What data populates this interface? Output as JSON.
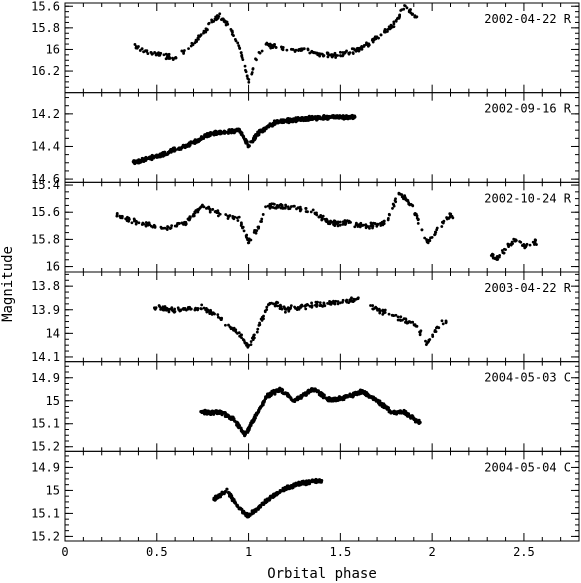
{
  "figure": {
    "xlabel": "Orbital phase",
    "ylabel": "Magnitude",
    "colors": {
      "points": "#000000",
      "frame": "#000000",
      "background": "#ffffff"
    }
  },
  "chart_data": [
    {
      "type": "scatter",
      "label": "2002-04-22 R",
      "xlim": [
        0,
        2.8
      ],
      "ylim": [
        16.4,
        15.57
      ],
      "y_inverted": true,
      "yticks": [
        "15.6",
        "15.8",
        "16",
        "16.2"
      ],
      "xticks": [
        "0",
        "0.5",
        "1",
        "1.5",
        "2",
        "2.5"
      ],
      "phase_range": [
        0.38,
        1.92
      ],
      "key_points": [
        [
          0.38,
          15.98
        ],
        [
          0.5,
          16.05
        ],
        [
          0.6,
          16.08
        ],
        [
          0.7,
          15.95
        ],
        [
          0.8,
          15.75
        ],
        [
          0.84,
          15.68
        ],
        [
          0.9,
          15.8
        ],
        [
          0.95,
          15.98
        ],
        [
          1.0,
          16.3
        ],
        [
          1.05,
          16.05
        ],
        [
          1.1,
          15.95
        ],
        [
          1.2,
          16.0
        ],
        [
          1.3,
          16.0
        ],
        [
          1.4,
          16.05
        ],
        [
          1.5,
          16.05
        ],
        [
          1.6,
          16.0
        ],
        [
          1.7,
          15.9
        ],
        [
          1.8,
          15.75
        ],
        [
          1.85,
          15.6
        ],
        [
          1.92,
          15.7
        ]
      ]
    },
    {
      "type": "scatter",
      "label": "2002-09-16 R",
      "xlim": [
        0,
        2.8
      ],
      "ylim": [
        14.62,
        14.07
      ],
      "y_inverted": true,
      "yticks": [
        "14.2",
        "14.4",
        "14.6"
      ],
      "xticks": [
        "0",
        "0.5",
        "1",
        "1.5",
        "2",
        "2.5"
      ],
      "phase_range": [
        0.37,
        1.58
      ],
      "key_points": [
        [
          0.37,
          14.5
        ],
        [
          0.5,
          14.46
        ],
        [
          0.65,
          14.4
        ],
        [
          0.8,
          14.32
        ],
        [
          0.95,
          14.3
        ],
        [
          1.0,
          14.4
        ],
        [
          1.05,
          14.32
        ],
        [
          1.15,
          14.25
        ],
        [
          1.3,
          14.23
        ],
        [
          1.45,
          14.22
        ],
        [
          1.58,
          14.22
        ]
      ]
    },
    {
      "type": "scatter",
      "label": "2002-10-24 R",
      "xlim": [
        0,
        2.8
      ],
      "ylim": [
        16.04,
        15.38
      ],
      "y_inverted": true,
      "yticks": [
        "15.4",
        "15.6",
        "15.8",
        "16"
      ],
      "xticks": [
        "0",
        "0.5",
        "1",
        "1.5",
        "2",
        "2.5"
      ],
      "phase_range": [
        0.28,
        2.57
      ],
      "key_points": [
        [
          0.28,
          15.62
        ],
        [
          0.4,
          15.68
        ],
        [
          0.55,
          15.72
        ],
        [
          0.65,
          15.68
        ],
        [
          0.75,
          15.55
        ],
        [
          0.85,
          15.62
        ],
        [
          0.95,
          15.65
        ],
        [
          1.0,
          15.82
        ],
        [
          1.05,
          15.72
        ],
        [
          1.1,
          15.55
        ],
        [
          1.25,
          15.57
        ],
        [
          1.35,
          15.6
        ],
        [
          1.45,
          15.68
        ],
        [
          1.55,
          15.68
        ],
        [
          1.65,
          15.7
        ],
        [
          1.75,
          15.68
        ],
        [
          1.82,
          15.45
        ],
        [
          1.9,
          15.58
        ],
        [
          1.97,
          15.82
        ],
        [
          2.05,
          15.7
        ],
        [
          2.1,
          15.62
        ],
        [
          2.35,
          15.95
        ],
        [
          2.45,
          15.8
        ],
        [
          2.5,
          15.85
        ],
        [
          2.57,
          15.82
        ]
      ]
    },
    {
      "type": "scatter",
      "label": "2003-04-22 R",
      "xlim": [
        0,
        2.8
      ],
      "ylim": [
        14.12,
        13.74
      ],
      "y_inverted": true,
      "yticks": [
        "13.8",
        "13.9",
        "14",
        "14.1"
      ],
      "xticks": [
        "0",
        "0.5",
        "1",
        "1.5",
        "2",
        "2.5"
      ],
      "phase_range": [
        0.48,
        2.08
      ],
      "key_points": [
        [
          0.48,
          13.89
        ],
        [
          0.6,
          13.9
        ],
        [
          0.75,
          13.89
        ],
        [
          0.85,
          13.94
        ],
        [
          0.95,
          14.0
        ],
        [
          1.0,
          14.06
        ],
        [
          1.05,
          13.98
        ],
        [
          1.12,
          13.86
        ],
        [
          1.2,
          13.9
        ],
        [
          1.35,
          13.88
        ],
        [
          1.5,
          13.87
        ],
        [
          1.6,
          13.85
        ],
        [
          1.7,
          13.9
        ],
        [
          1.8,
          13.93
        ],
        [
          1.92,
          13.97
        ],
        [
          1.97,
          14.05
        ],
        [
          2.05,
          13.95
        ]
      ]
    },
    {
      "type": "scatter",
      "label": "2004-05-03 C",
      "xlim": [
        0,
        2.8
      ],
      "ylim": [
        15.22,
        14.83
      ],
      "y_inverted": true,
      "yticks": [
        "14.9",
        "15",
        "15.1",
        "15.2"
      ],
      "xticks": [
        "0",
        "0.5",
        "1",
        "1.5",
        "2",
        "2.5"
      ],
      "phase_range": [
        0.74,
        1.94
      ],
      "key_points": [
        [
          0.74,
          15.05
        ],
        [
          0.85,
          15.05
        ],
        [
          0.92,
          15.08
        ],
        [
          0.98,
          15.15
        ],
        [
          1.03,
          15.08
        ],
        [
          1.1,
          14.98
        ],
        [
          1.17,
          14.95
        ],
        [
          1.25,
          15.0
        ],
        [
          1.35,
          14.95
        ],
        [
          1.45,
          15.0
        ],
        [
          1.55,
          14.98
        ],
        [
          1.62,
          14.96
        ],
        [
          1.7,
          15.0
        ],
        [
          1.78,
          15.05
        ],
        [
          1.85,
          15.05
        ],
        [
          1.94,
          15.1
        ]
      ]
    },
    {
      "type": "scatter",
      "label": "2004-05-04 C",
      "xlim": [
        0,
        2.8
      ],
      "ylim": [
        15.22,
        14.83
      ],
      "y_inverted": true,
      "yticks": [
        "14.9",
        "15",
        "15.1",
        "15.2"
      ],
      "xticks": [
        "0",
        "0.5",
        "1",
        "1.5",
        "2",
        "2.5"
      ],
      "phase_range": [
        0.81,
        1.4
      ],
      "key_points": [
        [
          0.81,
          15.04
        ],
        [
          0.88,
          15.0
        ],
        [
          0.95,
          15.08
        ],
        [
          1.0,
          15.11
        ],
        [
          1.05,
          15.08
        ],
        [
          1.12,
          15.03
        ],
        [
          1.2,
          14.99
        ],
        [
          1.28,
          14.97
        ],
        [
          1.35,
          14.96
        ],
        [
          1.4,
          14.96
        ]
      ]
    }
  ]
}
